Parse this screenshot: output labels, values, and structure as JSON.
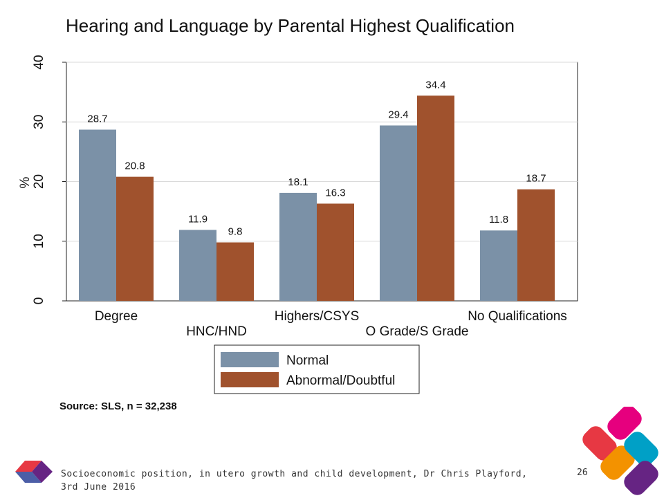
{
  "chart_data": {
    "type": "bar",
    "title": "Hearing and Language by Parental Highest Qualification",
    "ylabel": "%",
    "xlabel": "",
    "ylim": [
      0,
      40
    ],
    "yticks": [
      0,
      10,
      20,
      30,
      40
    ],
    "grid": true,
    "legend_position": "bottom-center",
    "categories": [
      "Degree",
      "HNC/HND",
      "Highers/CSYS",
      "O Grade/S Grade",
      "No Qualifications"
    ],
    "series": [
      {
        "name": "Normal",
        "color": "#7b91a7",
        "values": [
          28.7,
          11.9,
          18.1,
          29.4,
          11.8
        ]
      },
      {
        "name": "Abnormal/Doubtful",
        "color": "#a0522d",
        "values": [
          20.8,
          9.8,
          16.3,
          34.4,
          18.7
        ]
      }
    ],
    "data_labels": [
      [
        "28.7",
        "11.9",
        "18.1",
        "29.4",
        "11.8"
      ],
      [
        "20.8",
        "9.8",
        "16.3",
        "34.4",
        "18.7"
      ]
    ],
    "source": "Source: SLS, n = 32,238"
  },
  "footer": {
    "text": "Socioeconomic position, in utero growth and child development, Dr Chris Playford, 3rd June 2016",
    "slide_number": "26"
  },
  "decoration_colors": [
    "#e6007e",
    "#f39200",
    "#00a0c6",
    "#662483",
    "#e73843",
    "#4c5ea7"
  ]
}
